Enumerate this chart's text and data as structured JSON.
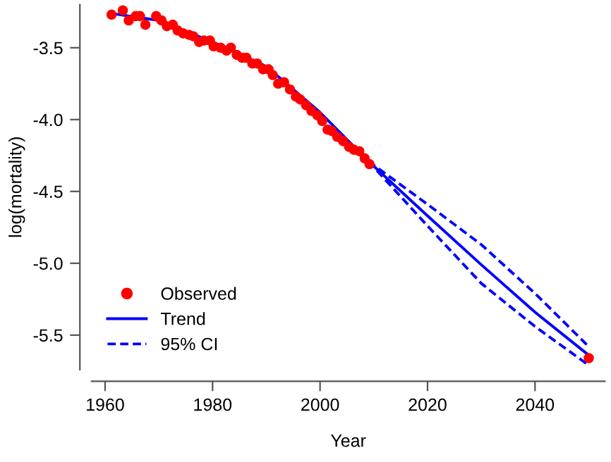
{
  "chart_data": {
    "type": "line",
    "xlabel": "Year",
    "ylabel": "log(mortality)",
    "xlim": [
      1957.5,
      2053
    ],
    "ylim": [
      -5.74,
      -3.2
    ],
    "xticks": [
      1960,
      1980,
      2000,
      2020,
      2040
    ],
    "yticks": [
      -5.5,
      {
        "value": -5.0,
        "label": "-5.0"
      },
      -4.5,
      {
        "value": -4.0,
        "label": "-4.0"
      },
      -3.5
    ],
    "grid": false,
    "legend": "bottom left",
    "series": [
      {
        "name": "Observed",
        "type": "scatter",
        "marker": "circle",
        "color": "#ff0000",
        "x": [
          1961.2,
          1963.3,
          1964.4,
          1965.7,
          1966.5,
          1967.5,
          1969.5,
          1970.5,
          1971.5,
          1972.6,
          1973.5,
          1974.5,
          1975.6,
          1976.4,
          1977.5,
          1978.4,
          1979.5,
          1980.2,
          1981.5,
          1982.6,
          1983.4,
          1984.5,
          1985.5,
          1986.3,
          1987.4,
          1988.3,
          1989.4,
          1990.4,
          1991.2,
          1992.2,
          1993.3,
          1994.4,
          1995.5,
          1996.3,
          1997.4,
          1998.4,
          1999.5,
          2000.4,
          2001.4,
          2002.2,
          2003.2,
          2004.3,
          2005.4,
          2006.3,
          2007.3,
          2008.3,
          2009.2,
          2050
        ],
        "values": [
          -3.27,
          -3.24,
          -3.31,
          -3.28,
          -3.28,
          -3.34,
          -3.28,
          -3.31,
          -3.35,
          -3.34,
          -3.38,
          -3.4,
          -3.41,
          -3.42,
          -3.46,
          -3.45,
          -3.45,
          -3.49,
          -3.5,
          -3.52,
          -3.5,
          -3.55,
          -3.57,
          -3.57,
          -3.61,
          -3.61,
          -3.65,
          -3.65,
          -3.69,
          -3.75,
          -3.74,
          -3.79,
          -3.84,
          -3.86,
          -3.9,
          -3.94,
          -3.97,
          -4.01,
          -4.07,
          -4.08,
          -4.12,
          -4.15,
          -4.19,
          -4.21,
          -4.22,
          -4.27,
          -4.31,
          -5.66
        ]
      },
      {
        "name": "Trend",
        "line_style": "solid",
        "color": "#0000ff",
        "x": [
          1961,
          1970,
          1980,
          1990,
          2000,
          2009,
          2020,
          2030,
          2040,
          2050
        ],
        "values": [
          -3.26,
          -3.31,
          -3.46,
          -3.63,
          -3.95,
          -4.29,
          -4.67,
          -5.01,
          -5.34,
          -5.64
        ]
      },
      {
        "name": "95% CI",
        "line_style": "dashed",
        "color": "#0000ff",
        "x": [
          2009,
          2020,
          2030,
          2040,
          2050
        ],
        "values": [
          -4.29,
          -4.59,
          -4.87,
          -5.21,
          -5.58
        ]
      },
      {
        "line_style": "dashed",
        "color": "#0000ff",
        "x": [
          2009,
          2020,
          2030,
          2040,
          2050
        ],
        "values": [
          -4.29,
          -4.74,
          -5.14,
          -5.44,
          -5.71
        ]
      }
    ]
  }
}
